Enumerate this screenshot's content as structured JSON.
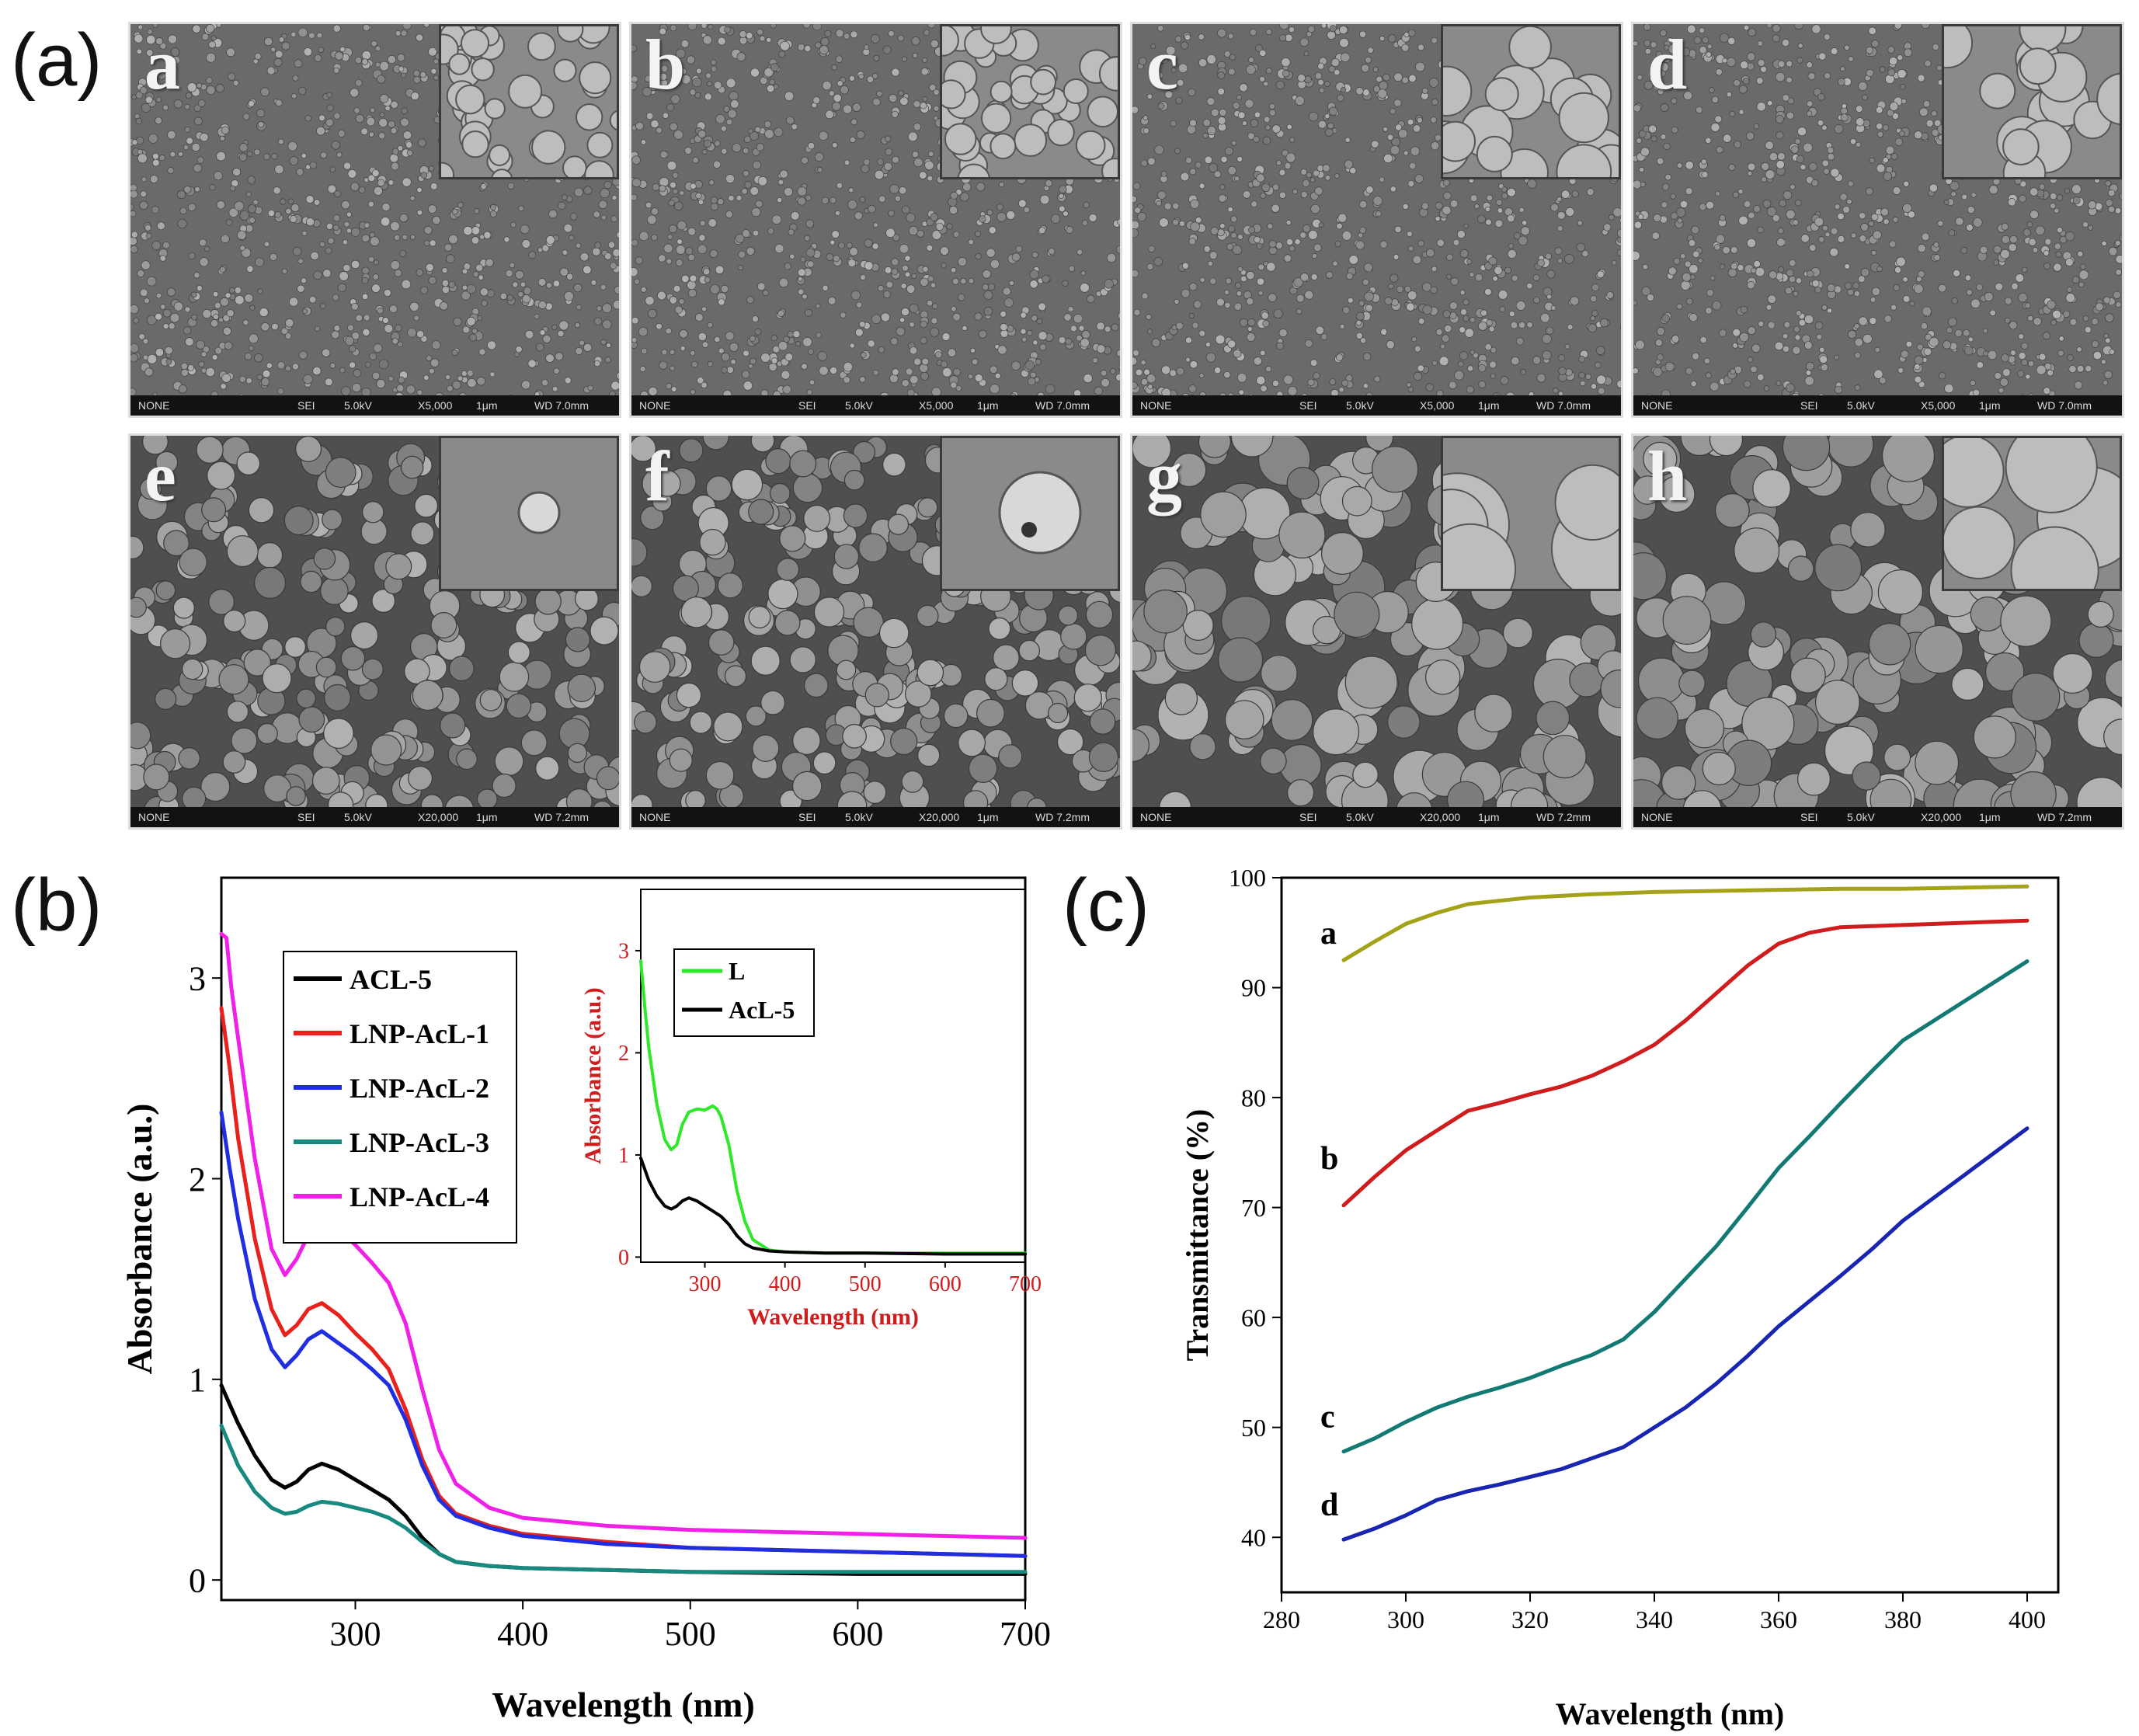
{
  "panel_labels": {
    "a": "(a)",
    "b": "(b)",
    "c": "(c)"
  },
  "sem": {
    "tiles": [
      {
        "letter": "a",
        "bar": [
          "NONE",
          "SEI",
          "5.0kV",
          "X5,000",
          "1μm",
          "WD 7.0mm"
        ],
        "spheres": "dense-small"
      },
      {
        "letter": "b",
        "bar": [
          "NONE",
          "SEI",
          "5.0kV",
          "X5,000",
          "1μm",
          "WD 7.0mm"
        ],
        "spheres": "dense-small"
      },
      {
        "letter": "c",
        "bar": [
          "NONE",
          "SEI",
          "5.0kV",
          "X5,000",
          "1μm",
          "WD 7.0mm"
        ],
        "spheres": "dense-small"
      },
      {
        "letter": "d",
        "bar": [
          "NONE",
          "SEI",
          "5.0kV",
          "X5,000",
          "1μm",
          "WD 7.0mm"
        ],
        "spheres": "dense-small"
      },
      {
        "letter": "e",
        "bar": [
          "NONE",
          "SEI",
          "5.0kV",
          "X20,000",
          "1μm",
          "WD 7.2mm"
        ],
        "spheres": "medium"
      },
      {
        "letter": "f",
        "bar": [
          "NONE",
          "SEI",
          "5.0kV",
          "X20,000",
          "1μm",
          "WD 7.2mm"
        ],
        "spheres": "medium"
      },
      {
        "letter": "g",
        "bar": [
          "NONE",
          "SEI",
          "5.0kV",
          "X20,000",
          "1μm",
          "WD 7.2mm"
        ],
        "spheres": "large"
      },
      {
        "letter": "h",
        "bar": [
          "NONE",
          "SEI",
          "5.0kV",
          "X20,000",
          "1μm",
          "WD 7.2mm"
        ],
        "spheres": "large"
      }
    ]
  },
  "chart_data": [
    {
      "id": "b-main",
      "type": "line",
      "xlabel": "Wavelength (nm)",
      "ylabel": "Absorbance (a.u.)",
      "xlim": [
        220,
        700
      ],
      "ylim": [
        -0.1,
        3.5
      ],
      "xticks": [
        300,
        400,
        500,
        600,
        700
      ],
      "yticks": [
        0,
        1,
        2,
        3
      ],
      "legend_position": "top-left",
      "series": [
        {
          "name": "ACL-5",
          "color": "#000000",
          "x": [
            220,
            230,
            240,
            250,
            258,
            265,
            272,
            280,
            290,
            300,
            310,
            320,
            330,
            340,
            350,
            360,
            380,
            400,
            450,
            500,
            600,
            700
          ],
          "y": [
            0.97,
            0.78,
            0.62,
            0.5,
            0.46,
            0.49,
            0.55,
            0.58,
            0.55,
            0.5,
            0.45,
            0.4,
            0.32,
            0.21,
            0.13,
            0.09,
            0.07,
            0.06,
            0.05,
            0.04,
            0.03,
            0.03
          ]
        },
        {
          "name": "LNP-AcL-1",
          "color": "#e8211c",
          "x": [
            220,
            225,
            230,
            240,
            250,
            258,
            265,
            272,
            280,
            290,
            300,
            310,
            320,
            330,
            340,
            350,
            360,
            380,
            400,
            450,
            500,
            600,
            700
          ],
          "y": [
            2.85,
            2.55,
            2.2,
            1.7,
            1.35,
            1.22,
            1.27,
            1.35,
            1.38,
            1.32,
            1.23,
            1.15,
            1.05,
            0.85,
            0.6,
            0.42,
            0.33,
            0.27,
            0.23,
            0.19,
            0.16,
            0.14,
            0.12
          ]
        },
        {
          "name": "LNP-AcL-2",
          "color": "#1f2ee0",
          "x": [
            220,
            225,
            230,
            240,
            250,
            258,
            265,
            272,
            280,
            290,
            300,
            310,
            320,
            330,
            340,
            350,
            360,
            380,
            400,
            450,
            500,
            600,
            700
          ],
          "y": [
            2.33,
            2.05,
            1.8,
            1.4,
            1.15,
            1.06,
            1.12,
            1.2,
            1.24,
            1.18,
            1.12,
            1.05,
            0.97,
            0.8,
            0.57,
            0.4,
            0.32,
            0.26,
            0.22,
            0.18,
            0.16,
            0.14,
            0.12
          ]
        },
        {
          "name": "LNP-AcL-3",
          "color": "#18897f",
          "x": [
            220,
            230,
            240,
            250,
            258,
            265,
            272,
            280,
            290,
            300,
            310,
            320,
            330,
            340,
            350,
            360,
            380,
            400,
            450,
            500,
            600,
            700
          ],
          "y": [
            0.77,
            0.57,
            0.44,
            0.36,
            0.33,
            0.34,
            0.37,
            0.39,
            0.38,
            0.36,
            0.34,
            0.31,
            0.26,
            0.19,
            0.13,
            0.09,
            0.07,
            0.06,
            0.05,
            0.04,
            0.04,
            0.04
          ]
        },
        {
          "name": "LNP-AcL-4",
          "color": "#f020e8",
          "x": [
            220,
            223,
            226,
            230,
            240,
            250,
            258,
            265,
            272,
            280,
            290,
            300,
            310,
            320,
            330,
            340,
            350,
            360,
            380,
            400,
            450,
            500,
            600,
            700
          ],
          "y": [
            3.22,
            3.2,
            2.95,
            2.7,
            2.1,
            1.65,
            1.52,
            1.6,
            1.72,
            1.8,
            1.75,
            1.67,
            1.58,
            1.48,
            1.28,
            0.95,
            0.65,
            0.48,
            0.36,
            0.31,
            0.27,
            0.25,
            0.23,
            0.21
          ]
        }
      ]
    },
    {
      "id": "b-inset",
      "type": "line",
      "xlabel": "Wavelength (nm)",
      "ylabel": "Absorbance (a.u.)",
      "xlim": [
        220,
        700
      ],
      "ylim": [
        -0.05,
        3.6
      ],
      "xticks": [
        300,
        400,
        500,
        600,
        700
      ],
      "yticks": [
        0,
        1,
        2,
        3
      ],
      "ytick_extra": [
        "1"
      ],
      "legend_position": "top-right",
      "series": [
        {
          "name": "L",
          "color": "#2ee82a",
          "x": [
            220,
            225,
            230,
            240,
            250,
            258,
            265,
            272,
            280,
            290,
            300,
            310,
            315,
            320,
            330,
            340,
            350,
            360,
            380,
            400,
            450,
            500,
            600,
            700
          ],
          "y": [
            2.9,
            2.45,
            2.05,
            1.5,
            1.15,
            1.05,
            1.1,
            1.3,
            1.42,
            1.45,
            1.44,
            1.48,
            1.45,
            1.38,
            1.1,
            0.65,
            0.35,
            0.17,
            0.07,
            0.05,
            0.04,
            0.04,
            0.04,
            0.04
          ]
        },
        {
          "name": "AcL-5",
          "color": "#000000",
          "x": [
            220,
            230,
            240,
            250,
            258,
            265,
            272,
            280,
            290,
            300,
            310,
            320,
            330,
            340,
            350,
            360,
            380,
            400,
            450,
            500,
            600,
            700
          ],
          "y": [
            0.97,
            0.75,
            0.6,
            0.5,
            0.47,
            0.5,
            0.55,
            0.58,
            0.55,
            0.5,
            0.45,
            0.4,
            0.32,
            0.21,
            0.13,
            0.09,
            0.06,
            0.05,
            0.04,
            0.04,
            0.03,
            0.03
          ]
        }
      ]
    },
    {
      "id": "c",
      "type": "line",
      "xlabel": "Wavelength (nm)",
      "ylabel": "Transmittance (%)",
      "xlim": [
        280,
        405
      ],
      "ylim": [
        35,
        100
      ],
      "xticks": [
        280,
        300,
        320,
        340,
        360,
        380,
        400
      ],
      "yticks": [
        40,
        50,
        60,
        70,
        80,
        90,
        100
      ],
      "series": [
        {
          "name": "a",
          "color": "#a3a219",
          "x": [
            290,
            295,
            300,
            305,
            310,
            315,
            320,
            330,
            340,
            350,
            360,
            370,
            380,
            390,
            400
          ],
          "y": [
            92.5,
            94.2,
            95.8,
            96.8,
            97.6,
            97.9,
            98.2,
            98.5,
            98.7,
            98.8,
            98.9,
            99.0,
            99.0,
            99.1,
            99.2
          ]
        },
        {
          "name": "b",
          "color": "#d01c1c",
          "x": [
            290,
            295,
            300,
            305,
            310,
            315,
            320,
            325,
            330,
            335,
            340,
            345,
            350,
            355,
            360,
            365,
            370,
            375,
            380,
            390,
            400
          ],
          "y": [
            70.2,
            72.8,
            75.2,
            77.0,
            78.8,
            79.5,
            80.3,
            81.0,
            82.0,
            83.3,
            84.8,
            87.0,
            89.5,
            92.0,
            94.0,
            95.0,
            95.5,
            95.6,
            95.7,
            95.9,
            96.1
          ]
        },
        {
          "name": "c",
          "color": "#137a73",
          "x": [
            290,
            295,
            300,
            305,
            310,
            315,
            320,
            325,
            330,
            335,
            340,
            345,
            350,
            355,
            360,
            365,
            370,
            375,
            380,
            390,
            400
          ],
          "y": [
            47.8,
            49.0,
            50.5,
            51.8,
            52.8,
            53.6,
            54.5,
            55.6,
            56.6,
            58.0,
            60.5,
            63.5,
            66.5,
            70.0,
            73.6,
            76.5,
            79.5,
            82.4,
            85.2,
            88.8,
            92.4
          ]
        },
        {
          "name": "d",
          "color": "#1725b0",
          "x": [
            290,
            295,
            300,
            305,
            310,
            315,
            320,
            325,
            330,
            335,
            340,
            345,
            350,
            355,
            360,
            365,
            370,
            375,
            380,
            390,
            400
          ],
          "y": [
            39.8,
            40.8,
            42.0,
            43.4,
            44.2,
            44.8,
            45.5,
            46.2,
            47.2,
            48.2,
            50.0,
            51.8,
            54.0,
            56.5,
            59.2,
            61.5,
            63.8,
            66.2,
            68.8,
            73.0,
            77.2
          ]
        }
      ]
    }
  ]
}
